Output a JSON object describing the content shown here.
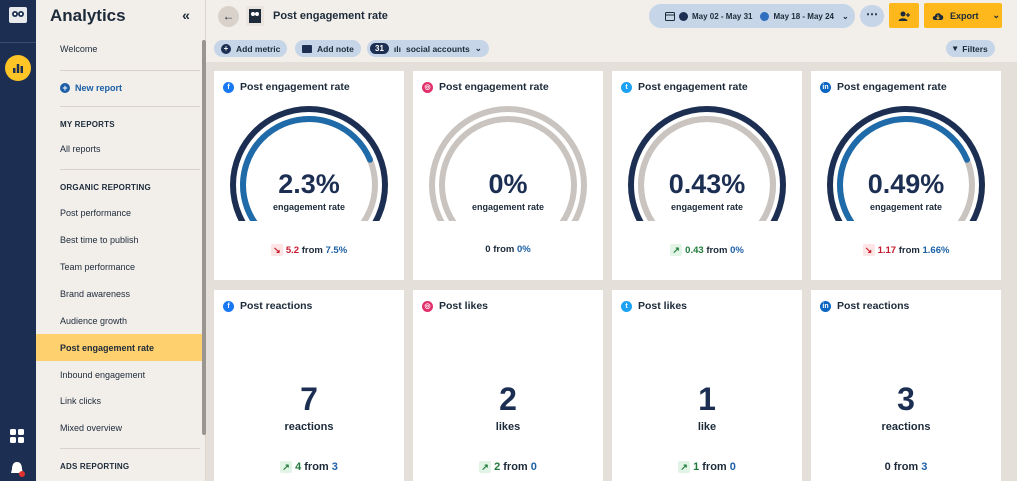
{
  "sidebar": {
    "title": "Analytics",
    "welcome": "Welcome",
    "new_report": "New report",
    "my_reports_header": "MY REPORTS",
    "all_reports": "All reports",
    "organic_header": "ORGANIC REPORTING",
    "items": [
      "Post performance",
      "Best time to publish",
      "Team performance",
      "Brand awareness",
      "Audience growth",
      "Post engagement rate",
      "Inbound engagement",
      "Link clicks",
      "Mixed overview"
    ],
    "active_item": "Post engagement rate",
    "ads_header": "ADS REPORTING"
  },
  "header": {
    "title": "Post engagement rate",
    "date_range_1": "May 02 - May 31",
    "date_range_2": "May 18 - May 24",
    "export_label": "Export"
  },
  "toolbar": {
    "add_metric": "Add metric",
    "add_note": "Add note",
    "accounts_count": "31",
    "accounts_label": "social accounts",
    "filters": "Filters"
  },
  "colors": {
    "facebook": "#1877f2",
    "instagram": "#e1306c",
    "twitter": "#1da1f2",
    "linkedin": "#0a66c2",
    "accent": "#ffb81c",
    "navy": "#1c2f52"
  },
  "gauge_cards": [
    {
      "network": "facebook",
      "title": "Post engagement rate",
      "value": "2.3%",
      "label": "engagement rate",
      "direction": "down",
      "change": "5.2",
      "from_word": "from",
      "previous": "7.5%",
      "fill": 0.75
    },
    {
      "network": "instagram",
      "title": "Post engagement rate",
      "value": "0%",
      "label": "engagement rate",
      "direction": "none",
      "change": "0",
      "from_word": "from",
      "previous": "0%",
      "fill": 0
    },
    {
      "network": "twitter",
      "title": "Post engagement rate",
      "value": "0.43%",
      "label": "engagement rate",
      "direction": "up",
      "change": "0.43",
      "from_word": "from",
      "previous": "0%",
      "fill": 1
    },
    {
      "network": "linkedin",
      "title": "Post engagement rate",
      "value": "0.49%",
      "label": "engagement rate",
      "direction": "down",
      "change": "1.17",
      "from_word": "from",
      "previous": "1.66%",
      "fill": 0.75
    }
  ],
  "count_cards": [
    {
      "network": "facebook",
      "title": "Post reactions",
      "value": "7",
      "label": "reactions",
      "direction": "up",
      "change": "4",
      "from_word": "from",
      "previous": "3"
    },
    {
      "network": "instagram",
      "title": "Post likes",
      "value": "2",
      "label": "likes",
      "direction": "up",
      "change": "2",
      "from_word": "from",
      "previous": "0"
    },
    {
      "network": "twitter",
      "title": "Post likes",
      "value": "1",
      "label": "like",
      "direction": "up",
      "change": "1",
      "from_word": "from",
      "previous": "0"
    },
    {
      "network": "linkedin",
      "title": "Post reactions",
      "value": "3",
      "label": "reactions",
      "direction": "none",
      "change": "0",
      "from_word": "from",
      "previous": "3"
    }
  ]
}
